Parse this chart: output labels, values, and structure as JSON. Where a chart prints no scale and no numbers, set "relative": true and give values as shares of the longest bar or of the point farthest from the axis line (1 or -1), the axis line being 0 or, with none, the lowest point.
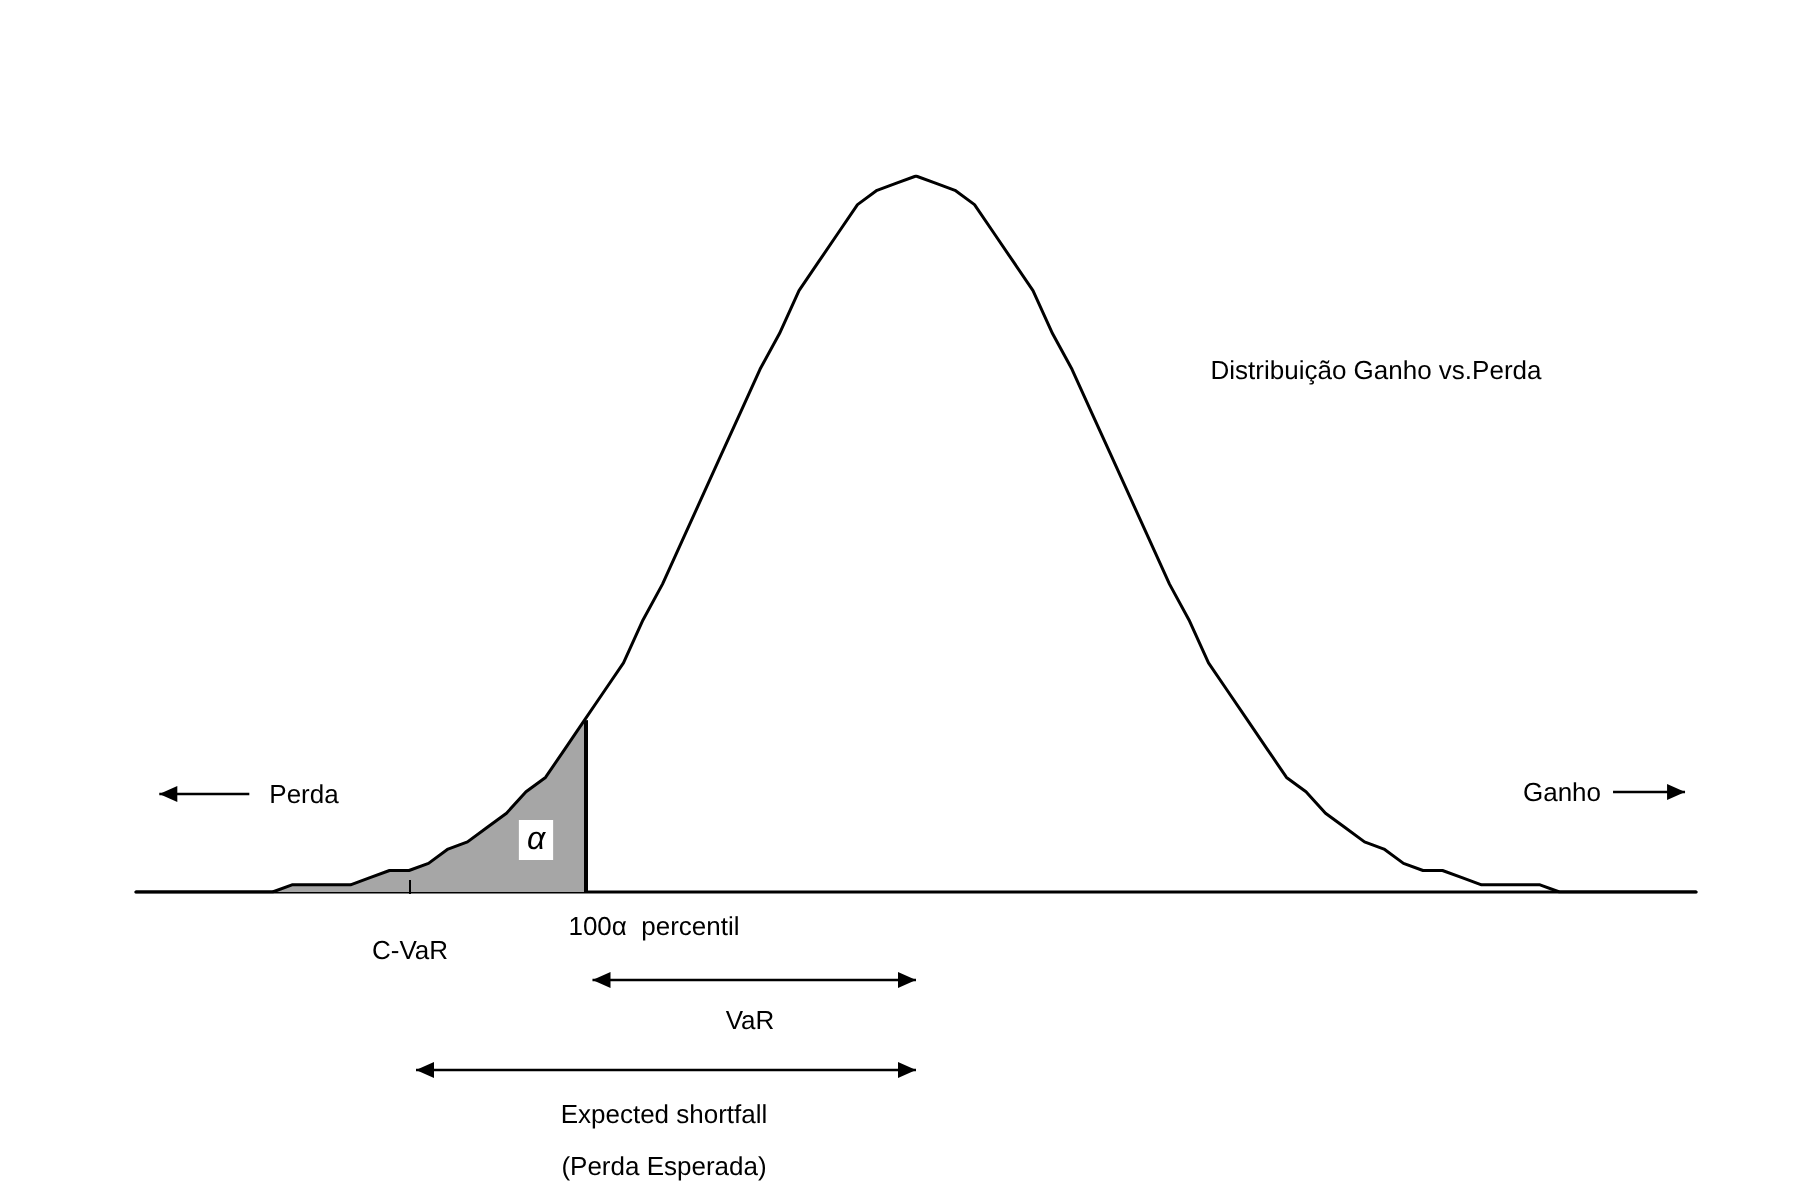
{
  "chart_data": {
    "type": "line",
    "relative": true,
    "marker": "none",
    "line_style": "solid",
    "categories": [
      null,
      null,
      null,
      null,
      null,
      null,
      null,
      null,
      null,
      null,
      null,
      null,
      null,
      null,
      null,
      null,
      null,
      null,
      null,
      null,
      null,
      null,
      null,
      null,
      null,
      null,
      null,
      null,
      null,
      null,
      null,
      null,
      null,
      null,
      null,
      null,
      null,
      null,
      null,
      null,
      null,
      null,
      null,
      null,
      null,
      null,
      null,
      null,
      null,
      null,
      null,
      null,
      null,
      null,
      null,
      null,
      null,
      null,
      null,
      null,
      null,
      null,
      null,
      null,
      null,
      null,
      null,
      null,
      null,
      null,
      null,
      null,
      null,
      null,
      null,
      null,
      null,
      null,
      null,
      null,
      null
    ],
    "series": [
      {
        "color": "#000000",
        "values": [
          0,
          0,
          0,
          0,
          0,
          0,
          0,
          0,
          0.01,
          0.01,
          0.01,
          0.01,
          0.02,
          0.03,
          0.03,
          0.04,
          0.06,
          0.07,
          0.09,
          0.11,
          0.14,
          0.16,
          0.2,
          0.24,
          0.28,
          0.32,
          0.38,
          0.43,
          0.49,
          0.55,
          0.61,
          0.67,
          0.73,
          0.78,
          0.84,
          0.88,
          0.92,
          0.96,
          0.98,
          0.99,
          1,
          0.99,
          0.98,
          0.96,
          0.92,
          0.88,
          0.84,
          0.78,
          0.73,
          0.67,
          0.61,
          0.55,
          0.49,
          0.43,
          0.38,
          0.32,
          0.28,
          0.24,
          0.2,
          0.16,
          0.14,
          0.11,
          0.09,
          0.07,
          0.06,
          0.04,
          0.03,
          0.03,
          0.02,
          0.01,
          0.01,
          0.01,
          0.01,
          0,
          0,
          0,
          0,
          0,
          0,
          0,
          0
        ]
      },
      {
        "type": "area",
        "color": "#a6a6a6",
        "values": [
          0,
          0,
          0,
          0,
          0,
          0,
          0,
          0,
          0.01,
          0.01,
          0.01,
          0.01,
          0.02,
          0.03,
          0.03,
          0.04,
          0.06,
          0.07,
          0.09,
          0.11,
          0.14,
          0.16,
          0.2,
          0.24,
          null,
          null,
          null,
          null,
          null,
          null,
          null,
          null,
          null,
          null,
          null,
          null,
          null,
          null,
          null,
          null,
          null,
          null,
          null,
          null,
          null,
          null,
          null,
          null,
          null,
          null,
          null,
          null,
          null,
          null,
          null,
          null,
          null,
          null,
          null,
          null,
          null,
          null,
          null,
          null,
          null,
          null,
          null,
          null,
          null,
          null,
          null,
          null,
          null,
          null,
          null,
          null,
          null,
          null,
          null,
          null,
          null
        ]
      }
    ],
    "annotations": [
      "Distribuição Ganho vs.Perda",
      "Perda",
      "Ganho",
      "α",
      "C-VaR",
      "100α  percentil",
      "VaR",
      "Expected shortfall",
      "(Perda Esperada)"
    ]
  }
}
